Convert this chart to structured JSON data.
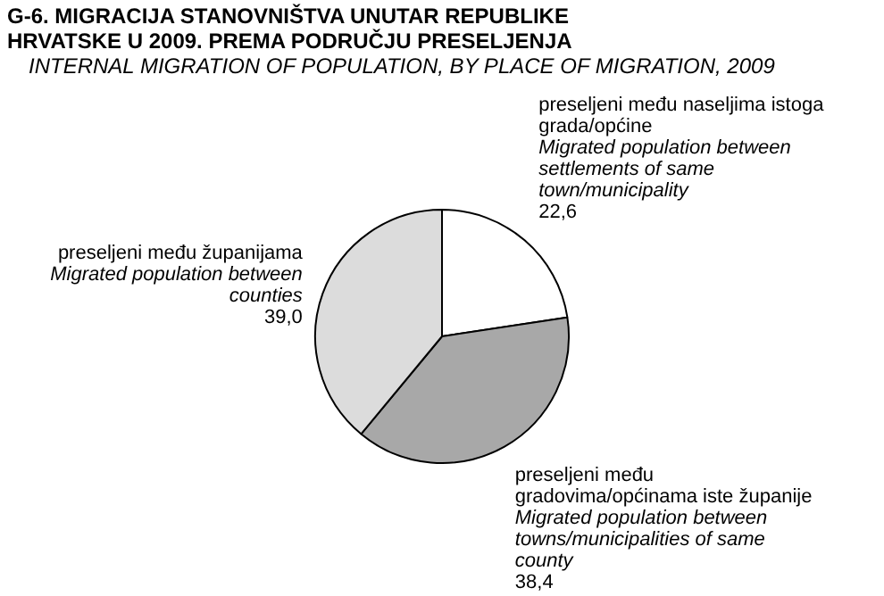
{
  "chart_data": {
    "type": "pie",
    "title": "G-6. MIGRACIJA STANOVNIŠTVA UNUTAR REPUBLIKE HRVATSKE U 2009. PREMA PODRUČJU PRESELJENJA",
    "subtitle": "INTERNAL MIGRATION OF POPULATION, BY PLACE OF MIGRATION, 2009",
    "categories": [
      "preseljeni među naseljima istoga grada/općine\nMigrated population between settlements of same town/municipality",
      "preseljeni među gradovima/općinama iste županije\nMigrated population between towns/municipalities of same county",
      "preseljeni među županijama\nMigrated population between counties"
    ],
    "values": [
      22.6,
      38.4,
      39.0
    ],
    "value_labels": [
      "22,6",
      "38,4",
      "39,0"
    ],
    "colors": [
      "#ffffff",
      "#a8a8a8",
      "#dcdcdc"
    ],
    "legend": false
  }
}
